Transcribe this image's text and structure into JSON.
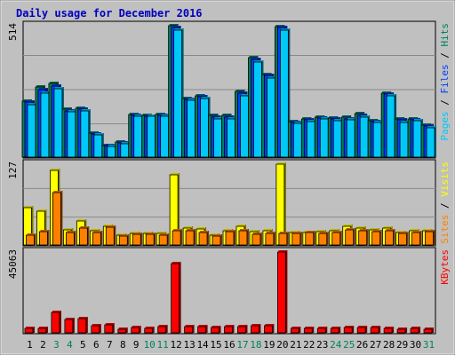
{
  "chart_data": {
    "type": "bar",
    "title": "Daily usage for December 2016",
    "categories": [
      "1",
      "2",
      "3",
      "4",
      "5",
      "6",
      "7",
      "8",
      "9",
      "10",
      "11",
      "12",
      "13",
      "14",
      "15",
      "16",
      "17",
      "18",
      "19",
      "20",
      "21",
      "22",
      "23",
      "24",
      "25",
      "26",
      "27",
      "28",
      "29",
      "30",
      "31"
    ],
    "weekend_days": [
      "3",
      "4",
      "10",
      "11",
      "17",
      "18",
      "24",
      "25",
      "31"
    ],
    "colors": {
      "background": "#c0c0c0",
      "frame": "#a8a8a8",
      "title": "#0000c0",
      "hits": "#00805c",
      "files": "#0040ff",
      "pages": "#00c8f8",
      "visits": "#ffff00",
      "sites": "#ff8000",
      "kbytes": "#ff0000",
      "weekend_label": "#00805c",
      "weekday_label": "#000000"
    },
    "panels": [
      {
        "ymax_label": "514",
        "ymax": 514,
        "y_axis_labels": [
          "Pages",
          "Files",
          "Hits"
        ],
        "series": [
          {
            "name": "Hits",
            "values": [
              218,
              275,
              289,
              187,
              192,
              93,
              45,
              58,
              165,
              164,
              166,
              514,
              228,
              240,
              164,
              163,
              258,
              390,
              324,
              512,
              140,
              150,
              158,
              154,
              155,
              171,
              144,
              250,
              150,
              151,
              124
            ]
          },
          {
            "name": "Files",
            "values": [
              214,
              264,
              278,
              181,
              186,
              91,
              44,
              56,
              162,
              161,
              163,
              507,
              225,
              235,
              158,
              157,
              250,
              382,
              318,
              506,
              137,
              146,
              154,
              150,
              150,
              164,
              140,
              245,
              145,
              147,
              120
            ]
          },
          {
            "name": "Pages",
            "values": [
              206,
              250,
              266,
              177,
              180,
              87,
              41,
              52,
              160,
              159,
              159,
              498,
              222,
              230,
              150,
              148,
              240,
              372,
              310,
              496,
              131,
              140,
              150,
              142,
              145,
              155,
              135,
              240,
              136,
              143,
              113
            ]
          }
        ]
      },
      {
        "ymax_label": "127",
        "ymax": 127,
        "y_axis_labels": [
          "Sites",
          "Visits"
        ],
        "series": [
          {
            "name": "Visits",
            "values": [
              58,
              53,
              117,
              24,
              37,
              22,
              29,
              15,
              18,
              18,
              18,
              110,
              27,
              25,
              15,
              23,
              30,
              21,
              22,
              127,
              20,
              20,
              21,
              23,
              29,
              27,
              24,
              27,
              20,
              22,
              22
            ]
          },
          {
            "name": "Sites",
            "values": [
              15,
              21,
              83,
              20,
              27,
              20,
              28,
              14,
              17,
              17,
              16,
              23,
              23,
              20,
              14,
              21,
              22,
              17,
              18,
              18,
              18,
              19,
              18,
              19,
              24,
              22,
              21,
              23,
              18,
              20,
              21
            ]
          }
        ]
      },
      {
        "ymax_label": "45063",
        "ymax": 45063,
        "y_axis_labels": [
          "KBytes"
        ],
        "series": [
          {
            "name": "KBytes",
            "values": [
              2700,
              2700,
              11500,
              7200,
              7800,
              3900,
              4500,
              1800,
              2800,
              2700,
              3600,
              38800,
              3500,
              3300,
              2800,
              3300,
              3400,
              3800,
              3900,
              45063,
              2600,
              2600,
              2500,
              2600,
              2900,
              3000,
              2800,
              2700,
              2200,
              2400,
              2100
            ]
          }
        ]
      }
    ]
  }
}
